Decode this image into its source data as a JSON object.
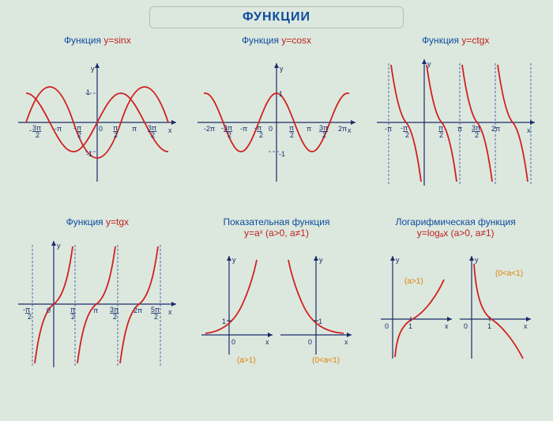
{
  "main_title": "ФУНКЦИИ",
  "colors": {
    "background": "#dce8de",
    "axis": "#1a2a6c",
    "curve": "#d02020",
    "title_blue": "#0d4a9e",
    "title_red": "#c02020",
    "orange": "#e08000",
    "dash": "#2a4aa0"
  },
  "panels": [
    {
      "id": "sin",
      "prefix": "Функция ",
      "formula": "y=sinx",
      "type": "sine",
      "ylabel": "y",
      "xlabel": "x",
      "ylabels": [
        "1",
        "-1"
      ],
      "xticks": [
        {
          "txt": "3π",
          "sub": "2",
          "neg": true
        },
        {
          "txt": "-π"
        },
        {
          "txt": "π",
          "sub": "2",
          "neg": true
        },
        {
          "txt": "0"
        },
        {
          "txt": "π",
          "sub": "2"
        },
        {
          "txt": "π"
        },
        {
          "txt": "3π",
          "sub": "2"
        }
      ]
    },
    {
      "id": "cos",
      "prefix": "Функция ",
      "formula": "y=cosx",
      "type": "cosine",
      "ylabel": "y",
      "xlabel": "x",
      "ylabels": [
        "1",
        "-1"
      ],
      "xticks": [
        {
          "txt": "-2π"
        },
        {
          "txt": "3π",
          "sub": "2",
          "neg": true
        },
        {
          "txt": "-π"
        },
        {
          "txt": "π",
          "sub": "2",
          "neg": true
        },
        {
          "txt": "0"
        },
        {
          "txt": "π",
          "sub": "2"
        },
        {
          "txt": "π"
        },
        {
          "txt": "3π",
          "sub": "2"
        },
        {
          "txt": "2π"
        }
      ]
    },
    {
      "id": "ctg",
      "prefix": "Функция ",
      "formula": "y=ctgx",
      "type": "cot",
      "ylabel": "y",
      "xlabel": "x",
      "xticks": [
        {
          "txt": "-π"
        },
        {
          "txt": "π",
          "sub": "2",
          "neg": true
        },
        {
          "txt": "π",
          "sub": "2"
        },
        {
          "txt": "π"
        },
        {
          "txt": "3π",
          "sub": "2"
        },
        {
          "txt": "2π"
        }
      ]
    },
    {
      "id": "tg",
      "prefix": "Функция ",
      "formula": "y=tgx",
      "type": "tan",
      "ylabel": "y",
      "xlabel": "x",
      "xticks": [
        {
          "txt": "π",
          "sub": "2",
          "neg": true
        },
        {
          "txt": "0"
        },
        {
          "txt": "π",
          "sub": "2"
        },
        {
          "txt": "π"
        },
        {
          "txt": "3π",
          "sub": "2"
        },
        {
          "txt": "2π"
        },
        {
          "txt": "5π",
          "sub": "2"
        }
      ]
    },
    {
      "id": "exp",
      "prefix": "Показательная функция",
      "formula": "y=aˣ (a>0, a≠1)",
      "type": "exp",
      "ylabel": "y",
      "xlabel": "x",
      "one": "1",
      "zero": "0",
      "caseA": "(a>1)",
      "caseB": "(0<a<1)"
    },
    {
      "id": "log",
      "prefix": "Логарифмическая функция",
      "formula": "y=logₐx (a>0, a≠1)",
      "type": "log",
      "ylabel": "y",
      "xlabel": "x",
      "one": "1",
      "zero": "0",
      "caseA": "(a>1)",
      "caseB": "(0<a<1)"
    }
  ]
}
